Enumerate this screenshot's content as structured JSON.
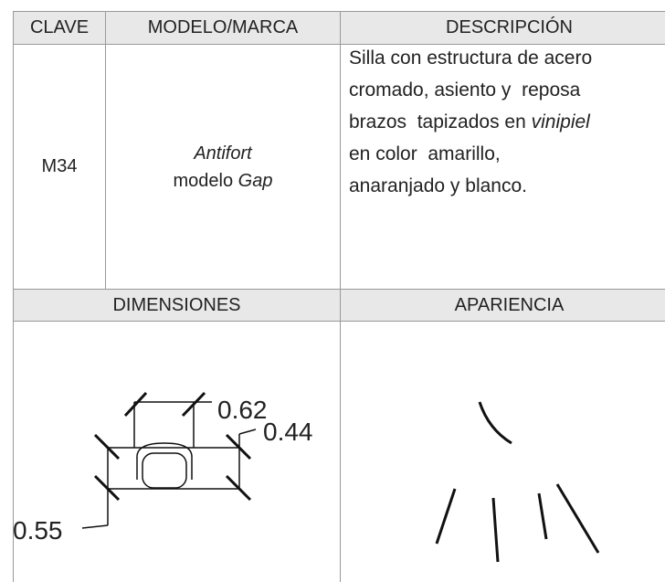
{
  "headers": [
    "CLAVE",
    "MODELO/MARCA",
    "DESCRIPCIÓN"
  ],
  "row": {
    "key": "M34",
    "model": {
      "brand": "Antifort",
      "prefix": "modelo",
      "name": "Gap"
    },
    "description": [
      [
        "Silla con estructura de acero"
      ],
      [
        "cromado, asiento y  reposa"
      ],
      [
        "brazos  tapizados en ",
        "vinipiel"
      ],
      [
        "en color  amarillo,"
      ],
      [
        "anaranjado y blanco."
      ]
    ]
  },
  "section_headers": [
    "DIMENSIONES",
    "APARIENCIA"
  ],
  "dimensions": {
    "width": "0.62",
    "depth": "0.44",
    "height": "0.55"
  }
}
